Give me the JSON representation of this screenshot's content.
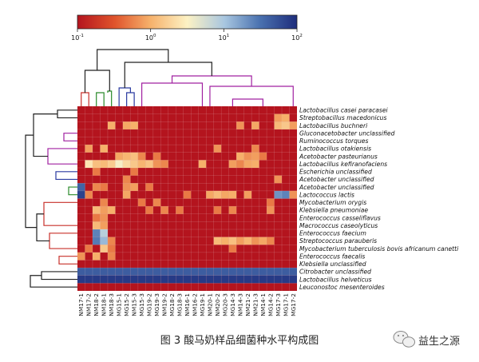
{
  "caption": "图 3   酸马奶样品细菌种水平构成图",
  "watermark": "益生之源",
  "colors": {
    "background_cell": "#b4141e",
    "grid": "#ffffff",
    "colorbar_stops": [
      "#b4141e",
      "#e0542c",
      "#f6b06a",
      "#fdf2c4",
      "#a8c6e0",
      "#4a72b0",
      "#1e2d7c"
    ],
    "dendro_top": [
      "#c8302a",
      "#2a8a2a",
      "#2a3aa0",
      "#a020a0"
    ],
    "dendro_left": [
      "#202020",
      "#a020a0",
      "#2a3aa0",
      "#2a8a2a",
      "#c8302a"
    ]
  },
  "chart_data": {
    "type": "heatmap",
    "title": "",
    "colorbar": {
      "scale": "log",
      "range": [
        0.1,
        100
      ],
      "ticks": [
        "10",
        "10",
        "10",
        "10"
      ],
      "tick_exponents": [
        "-1",
        "0",
        "1",
        "2"
      ]
    },
    "columns": [
      "NM17-1",
      "NM17-2",
      "NM18-2",
      "NM18-1",
      "NM18-3",
      "MG15-1",
      "MG15-2",
      "NM15-3",
      "MG15-3",
      "MG19-2",
      "MG19-3",
      "NM19-2",
      "MG18-2",
      "MG18-3",
      "NM16-1",
      "NM16-2",
      "MG19-1",
      "NM20-1",
      "NM20-2",
      "MG20-3",
      "MG14-3",
      "NM14-3",
      "NM21-2",
      "NM21-3",
      "NM14-1",
      "MG14-2",
      "MG17-3",
      "MG17-1",
      "MG17-2"
    ],
    "rows": [
      "Lactobacillus casei paracasei",
      "Streptobacillus macedonicus",
      "Lactobacillus buchneri",
      "Gluconacetobacter unclassified",
      "Ruminococcus torques",
      "Lactobacillus otakiensis",
      "Acetobacter pasteurianus",
      "Lactobacillus kefiranofaciens",
      "Escherichia unclassified",
      "Acetobacter unclassified",
      "Acetobacter unclassified",
      "Lactococcus lactis",
      "Mycobacterium orygis",
      "Klebsiella pneumoniae",
      "Enterococcus casseliflavus",
      "Macrococcus caseolyticus",
      "Enterococcus faecium",
      "Streptococcus parauberis",
      "Mycobacterium tuberculosis bovis africanum canetti",
      "Enterococcus faecalis",
      "Klebsiella unclassified",
      "Citrobacter unclassified",
      "Lactobacillus helveticus",
      "Leuconostoc mesenteroides"
    ],
    "background_value": 0.1,
    "cells": [
      [
        2,
        4,
        1.0
      ],
      [
        2,
        6,
        0.9
      ],
      [
        2,
        7,
        1.0
      ],
      [
        2,
        21,
        0.7
      ],
      [
        2,
        23,
        0.9
      ],
      [
        2,
        26,
        1.2
      ],
      [
        2,
        27,
        1.5
      ],
      [
        2,
        28,
        0.8
      ],
      [
        1,
        26,
        0.8
      ],
      [
        1,
        27,
        1.0
      ],
      [
        5,
        1,
        0.8
      ],
      [
        5,
        3,
        1.0
      ],
      [
        5,
        18,
        0.7
      ],
      [
        5,
        23,
        0.6
      ],
      [
        6,
        5,
        0.9
      ],
      [
        6,
        6,
        1.1
      ],
      [
        6,
        7,
        1.3
      ],
      [
        6,
        8,
        0.6
      ],
      [
        6,
        10,
        0.5
      ],
      [
        6,
        21,
        1.0
      ],
      [
        6,
        22,
        0.7
      ],
      [
        6,
        23,
        0.8
      ],
      [
        6,
        24,
        0.5
      ],
      [
        7,
        1,
        2.5
      ],
      [
        7,
        2,
        1.3
      ],
      [
        7,
        3,
        1.2
      ],
      [
        7,
        4,
        1.6
      ],
      [
        7,
        5,
        3.5
      ],
      [
        7,
        6,
        2.0
      ],
      [
        7,
        7,
        1.5
      ],
      [
        7,
        8,
        1.1
      ],
      [
        7,
        9,
        1.4
      ],
      [
        7,
        10,
        0.7
      ],
      [
        7,
        11,
        0.6
      ],
      [
        7,
        16,
        1.0
      ],
      [
        7,
        20,
        0.8
      ],
      [
        7,
        21,
        0.6
      ],
      [
        7,
        22,
        0.9
      ],
      [
        7,
        23,
        1.0
      ],
      [
        8,
        2,
        0.5
      ],
      [
        8,
        7,
        0.5
      ],
      [
        9,
        6,
        0.6
      ],
      [
        9,
        26,
        0.7
      ],
      [
        10,
        0,
        40
      ],
      [
        10,
        2,
        0.6
      ],
      [
        10,
        3,
        0.5
      ],
      [
        10,
        6,
        0.7
      ],
      [
        10,
        7,
        0.8
      ],
      [
        10,
        9,
        0.5
      ],
      [
        11,
        0,
        70
      ],
      [
        11,
        1,
        0.6
      ],
      [
        11,
        6,
        0.9
      ],
      [
        11,
        14,
        0.5
      ],
      [
        11,
        17,
        0.9
      ],
      [
        11,
        18,
        1.2
      ],
      [
        11,
        19,
        0.9
      ],
      [
        11,
        20,
        1.0
      ],
      [
        11,
        22,
        0.8
      ],
      [
        11,
        26,
        20
      ],
      [
        11,
        27,
        25
      ],
      [
        11,
        28,
        0.7
      ],
      [
        12,
        3,
        0.6
      ],
      [
        12,
        8,
        0.5
      ],
      [
        12,
        10,
        0.6
      ],
      [
        12,
        25,
        0.5
      ],
      [
        13,
        2,
        1.2
      ],
      [
        13,
        3,
        0.8
      ],
      [
        13,
        4,
        1.0
      ],
      [
        13,
        9,
        0.5
      ],
      [
        13,
        11,
        0.6
      ],
      [
        13,
        13,
        0.5
      ],
      [
        13,
        18,
        0.5
      ],
      [
        13,
        20,
        0.6
      ],
      [
        13,
        25,
        0.7
      ],
      [
        14,
        2,
        0.5
      ],
      [
        14,
        3,
        0.7
      ],
      [
        15,
        2,
        1.2
      ],
      [
        15,
        3,
        0.8
      ],
      [
        16,
        2,
        25
      ],
      [
        16,
        3,
        8
      ],
      [
        17,
        2,
        28
      ],
      [
        17,
        3,
        12
      ],
      [
        17,
        4,
        0.6
      ],
      [
        17,
        18,
        1.2
      ],
      [
        17,
        19,
        1.0
      ],
      [
        17,
        20,
        1.3
      ],
      [
        17,
        21,
        0.8
      ],
      [
        17,
        22,
        1.1
      ],
      [
        17,
        23,
        0.7
      ],
      [
        17,
        24,
        0.9
      ],
      [
        17,
        25,
        0.6
      ],
      [
        18,
        1,
        0.5
      ],
      [
        18,
        3,
        1.5
      ],
      [
        18,
        4,
        0.5
      ],
      [
        18,
        20,
        0.5
      ],
      [
        19,
        0,
        0.7
      ],
      [
        19,
        2,
        1.0
      ],
      [
        19,
        4,
        0.6
      ],
      [
        21,
        0,
        45
      ],
      [
        21,
        1,
        45
      ],
      [
        21,
        2,
        45
      ],
      [
        21,
        3,
        45
      ],
      [
        21,
        4,
        45
      ],
      [
        21,
        5,
        45
      ],
      [
        21,
        6,
        45
      ],
      [
        21,
        7,
        45
      ],
      [
        21,
        8,
        45
      ],
      [
        21,
        9,
        45
      ],
      [
        21,
        10,
        45
      ],
      [
        21,
        11,
        45
      ],
      [
        21,
        12,
        45
      ],
      [
        21,
        13,
        45
      ],
      [
        21,
        14,
        45
      ],
      [
        21,
        15,
        45
      ],
      [
        21,
        16,
        45
      ],
      [
        21,
        17,
        45
      ],
      [
        21,
        18,
        45
      ],
      [
        21,
        19,
        45
      ],
      [
        21,
        20,
        45
      ],
      [
        21,
        21,
        45
      ],
      [
        21,
        22,
        45
      ],
      [
        21,
        23,
        45
      ],
      [
        21,
        24,
        45
      ],
      [
        21,
        25,
        45
      ],
      [
        21,
        26,
        45
      ],
      [
        21,
        27,
        45
      ],
      [
        21,
        28,
        45
      ],
      [
        22,
        0,
        80
      ],
      [
        22,
        1,
        80
      ],
      [
        22,
        2,
        80
      ],
      [
        22,
        3,
        80
      ],
      [
        22,
        4,
        80
      ],
      [
        22,
        5,
        80
      ],
      [
        22,
        6,
        80
      ],
      [
        22,
        7,
        80
      ],
      [
        22,
        8,
        80
      ],
      [
        22,
        9,
        80
      ],
      [
        22,
        10,
        80
      ],
      [
        22,
        11,
        80
      ],
      [
        22,
        12,
        80
      ],
      [
        22,
        13,
        80
      ],
      [
        22,
        14,
        80
      ],
      [
        22,
        15,
        80
      ],
      [
        22,
        16,
        80
      ],
      [
        22,
        17,
        80
      ],
      [
        22,
        18,
        80
      ],
      [
        22,
        19,
        80
      ],
      [
        22,
        20,
        80
      ],
      [
        22,
        21,
        80
      ],
      [
        22,
        22,
        80
      ],
      [
        22,
        23,
        80
      ],
      [
        22,
        24,
        80
      ],
      [
        22,
        25,
        80
      ],
      [
        22,
        26,
        80
      ],
      [
        22,
        27,
        80
      ],
      [
        22,
        28,
        80
      ]
    ]
  }
}
